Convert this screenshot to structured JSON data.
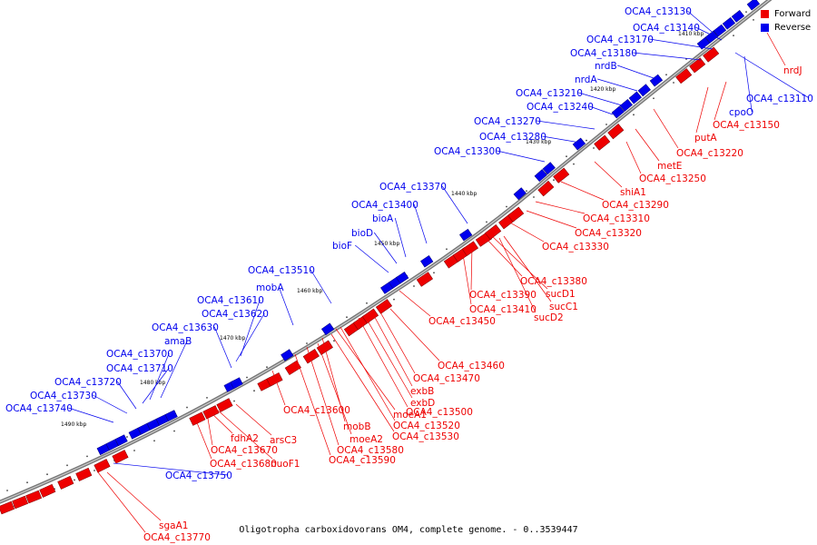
{
  "caption": "Oligotropha carboxidovorans OM4, complete genome. - 0..3539447",
  "legend": {
    "forward": {
      "label": "Forward",
      "color": "#ee0000"
    },
    "reverse": {
      "label": "Reverse",
      "color": "#0000ee"
    }
  },
  "colors": {
    "forward": "#ee0000",
    "reverse": "#0000ee",
    "backbone": "#888888",
    "tick": "#000000"
  },
  "ticks": [
    "1410 kbp",
    "1420 kbp",
    "1430 kbp",
    "1440 kbp",
    "1450 kbp",
    "1460 kbp",
    "1470 kbp",
    "1480 kbp",
    "1490 kbp"
  ],
  "reverse_labels": [
    "OCA4_c13130",
    "OCA4_c13140",
    "OCA4_c13170",
    "OCA4_c13180",
    "nrdB",
    "nrdA",
    "OCA4_c13210",
    "OCA4_c13240",
    "OCA4_c13270",
    "OCA4_c13280",
    "OCA4_c13300",
    "OCA4_c13370",
    "OCA4_c13400",
    "bioA",
    "bioD",
    "bioF",
    "OCA4_c13510",
    "mobA",
    "OCA4_c13610",
    "OCA4_c13620",
    "OCA4_c13630",
    "amaB",
    "OCA4_c13700",
    "OCA4_c13710",
    "OCA4_c13720",
    "OCA4_c13730",
    "OCA4_c13740",
    "cpoO",
    "OCA4_c13110",
    "OCA4_c13750"
  ],
  "forward_labels": [
    "nrdJ",
    "OCA4_c13150",
    "putA",
    "OCA4_c13220",
    "metE",
    "OCA4_c13250",
    "shiA1",
    "OCA4_c13290",
    "OCA4_c13310",
    "OCA4_c13320",
    "OCA4_c13330",
    "sucD1",
    "OCA4_c13380",
    "sucC1",
    "OCA4_c13390",
    "sucD2",
    "OCA4_c13410",
    "OCA4_c13450",
    "OCA4_c13460",
    "OCA4_c13470",
    "exbB",
    "exbD",
    "OCA4_c13500",
    "OCA4_c13520",
    "OCA4_c13530",
    "moeA1",
    "mobB",
    "moeA2",
    "OCA4_c13580",
    "OCA4_c13590",
    "OCA4_c13600",
    "arsC3",
    "nuoF1",
    "fdhA2",
    "OCA4_c13670",
    "OCA4_c13680",
    "sgaA1",
    "OCA4_c13770"
  ]
}
